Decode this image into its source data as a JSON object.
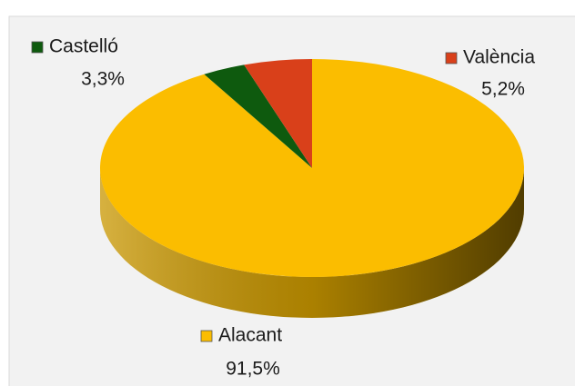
{
  "chart_data": {
    "type": "pie",
    "categories": [
      "Alacant",
      "Castelló",
      "València"
    ],
    "values": [
      91.5,
      3.3,
      5.2
    ],
    "value_labels": [
      "91,5%",
      "3,3%",
      "5,2%"
    ],
    "colors": [
      "#fbbd00",
      "#0e5a0e",
      "#d9401a"
    ]
  }
}
